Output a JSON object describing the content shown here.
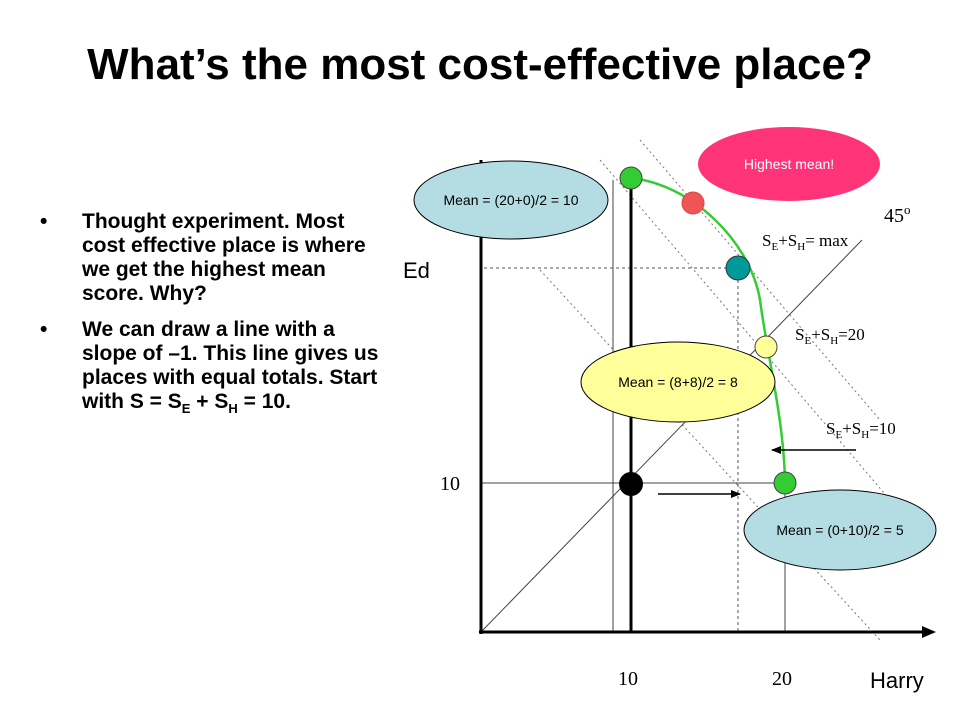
{
  "slide": {
    "title": "What’s the most cost-effective place?",
    "bullets": [
      {
        "text": "Thought experiment. Most cost effective place is where we get the highest mean score.  Why?"
      },
      {
        "text_before_sub_E": "We can draw a line with a slope of –1. This line gives us places with equal totals. Start with S = S",
        "sub_E": "E",
        "text_between": " + S",
        "sub_H": "H",
        "text_after": " = 10."
      }
    ]
  },
  "diagram": {
    "y_axis_label": "Ed",
    "x_axis_label": "Harry",
    "x_tick_labels": [
      "10",
      "20"
    ],
    "y_tick_labels": [
      "10"
    ],
    "angle_label": "45",
    "angle_sup": "o",
    "line_labels": [
      {
        "lead": "S",
        "sub1": "E",
        "mid": "+S",
        "sub2": "H",
        "tail": "= max"
      },
      {
        "lead": "S",
        "sub1": "E",
        "mid": "+S",
        "sub2": "H",
        "tail": "=20"
      },
      {
        "lead": "S",
        "sub1": "E",
        "mid": "+S",
        "sub2": "H",
        "tail": "=10"
      }
    ],
    "bubbles": {
      "top": "Mean = (20+0)/2 = 10",
      "middle": "Mean = (8+8)/2 = 8",
      "bottom": "Mean = (0+10)/2 = 5",
      "highest": "Highest mean!"
    },
    "colors": {
      "curve": "#33cc33",
      "green_point": "#33cc33",
      "red_point": "#ee5555",
      "teal_point": "#009999",
      "yellow_point": "#ffff99",
      "black_point": "#000000",
      "bubble_blue": "#b3dde3",
      "bubble_yellow": "#ffff99",
      "bubble_pink": "#ff3377"
    }
  }
}
